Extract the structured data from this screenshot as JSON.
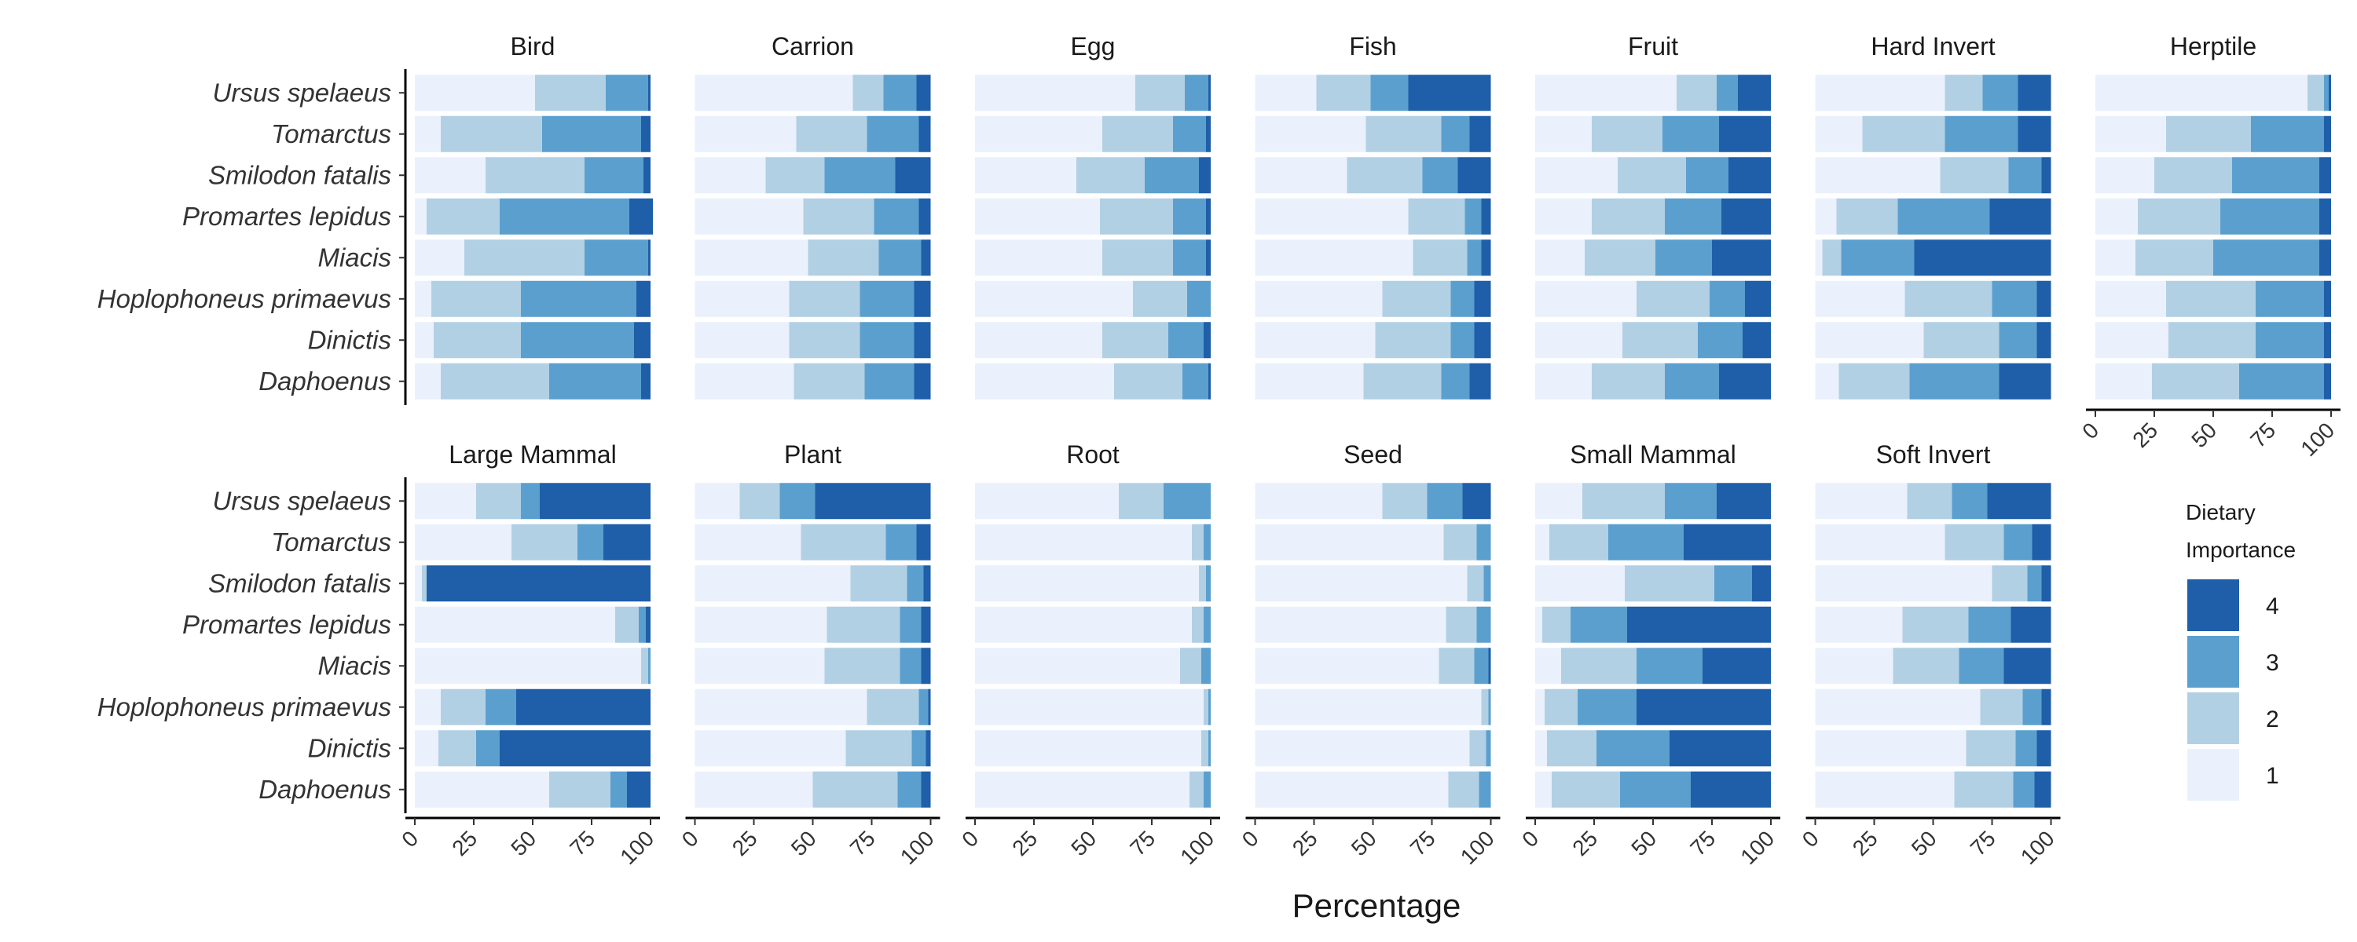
{
  "chart_data": {
    "type": "bar",
    "orientation": "horizontal",
    "stacked": true,
    "xlabel": "Percentage",
    "xlim": [
      0,
      100
    ],
    "xticks": [
      "0",
      "25",
      "50",
      "75",
      "100"
    ],
    "categories": [
      "Ursus spelaeus",
      "Tomarctus",
      "Smilodon fatalis",
      "Promartes lepidus",
      "Miacis",
      "Hoplophoneus primaevus",
      "Dinictis",
      "Daphoenus"
    ],
    "legend": {
      "title_lines": [
        "Dietary",
        "Importance"
      ],
      "position": "right",
      "items": [
        {
          "label": "4",
          "color": "#1f5ea8"
        },
        {
          "label": "3",
          "color": "#5b9fcf"
        },
        {
          "label": "2",
          "color": "#b2d0e4"
        },
        {
          "label": "1",
          "color": "#eaf1fc"
        }
      ]
    },
    "colors": {
      "1": "#eaf1fc",
      "2": "#b2d0e4",
      "3": "#5b9fcf",
      "4": "#1f5ea8"
    },
    "facets": [
      {
        "name": "Bird",
        "values": [
          [
            51,
            30,
            18,
            1
          ],
          [
            11,
            43,
            42,
            4
          ],
          [
            30,
            42,
            25,
            3
          ],
          [
            5,
            31,
            55,
            10
          ],
          [
            21,
            51,
            27,
            1
          ],
          [
            7,
            38,
            49,
            6
          ],
          [
            8,
            37,
            48,
            7
          ],
          [
            11,
            46,
            39,
            4
          ]
        ]
      },
      {
        "name": "Carrion",
        "values": [
          [
            67,
            13,
            14,
            6
          ],
          [
            43,
            30,
            22,
            5
          ],
          [
            30,
            25,
            30,
            15
          ],
          [
            46,
            30,
            19,
            5
          ],
          [
            48,
            30,
            18,
            4
          ],
          [
            40,
            30,
            23,
            7
          ],
          [
            40,
            30,
            23,
            7
          ],
          [
            42,
            30,
            21,
            7
          ]
        ]
      },
      {
        "name": "Egg",
        "values": [
          [
            68,
            21,
            10,
            1
          ],
          [
            54,
            30,
            14,
            2
          ],
          [
            43,
            29,
            23,
            5
          ],
          [
            53,
            31,
            14,
            2
          ],
          [
            54,
            30,
            14,
            2
          ],
          [
            67,
            23,
            10,
            0
          ],
          [
            54,
            28,
            15,
            3
          ],
          [
            59,
            29,
            11,
            1
          ]
        ]
      },
      {
        "name": "Fish",
        "values": [
          [
            26,
            23,
            16,
            35
          ],
          [
            47,
            32,
            12,
            9
          ],
          [
            39,
            32,
            15,
            14
          ],
          [
            65,
            24,
            7,
            4
          ],
          [
            67,
            23,
            6,
            4
          ],
          [
            54,
            29,
            10,
            7
          ],
          [
            51,
            32,
            10,
            7
          ],
          [
            46,
            33,
            12,
            9
          ]
        ]
      },
      {
        "name": "Fruit",
        "values": [
          [
            60,
            17,
            9,
            14
          ],
          [
            24,
            30,
            24,
            22
          ],
          [
            35,
            29,
            18,
            18
          ],
          [
            24,
            31,
            24,
            21
          ],
          [
            21,
            30,
            24,
            25
          ],
          [
            43,
            31,
            15,
            11
          ],
          [
            37,
            32,
            19,
            12
          ],
          [
            24,
            31,
            23,
            22
          ]
        ]
      },
      {
        "name": "Hard Invert",
        "values": [
          [
            55,
            16,
            15,
            14
          ],
          [
            20,
            35,
            31,
            14
          ],
          [
            53,
            29,
            14,
            4
          ],
          [
            9,
            26,
            39,
            26
          ],
          [
            3,
            8,
            31,
            58
          ],
          [
            38,
            37,
            19,
            6
          ],
          [
            46,
            32,
            16,
            6
          ],
          [
            10,
            30,
            38,
            22
          ]
        ]
      },
      {
        "name": "Herptile",
        "values": [
          [
            90,
            7,
            2,
            1
          ],
          [
            30,
            36,
            31,
            3
          ],
          [
            25,
            33,
            37,
            5
          ],
          [
            18,
            35,
            42,
            5
          ],
          [
            17,
            33,
            45,
            5
          ],
          [
            30,
            38,
            29,
            3
          ],
          [
            31,
            37,
            29,
            3
          ],
          [
            24,
            37,
            36,
            3
          ]
        ]
      },
      {
        "name": "Large Mammal",
        "values": [
          [
            26,
            19,
            8,
            47
          ],
          [
            41,
            28,
            11,
            20
          ],
          [
            3,
            2,
            0,
            95
          ],
          [
            85,
            10,
            3,
            2
          ],
          [
            96,
            3,
            1,
            0
          ],
          [
            11,
            19,
            13,
            57
          ],
          [
            10,
            16,
            10,
            64
          ],
          [
            57,
            26,
            7,
            10
          ]
        ]
      },
      {
        "name": "Plant",
        "values": [
          [
            19,
            17,
            15,
            49
          ],
          [
            45,
            36,
            13,
            6
          ],
          [
            66,
            24,
            7,
            3
          ],
          [
            56,
            31,
            9,
            4
          ],
          [
            55,
            32,
            9,
            4
          ],
          [
            73,
            22,
            4,
            1
          ],
          [
            64,
            28,
            6,
            2
          ],
          [
            50,
            36,
            10,
            4
          ]
        ]
      },
      {
        "name": "Root",
        "values": [
          [
            61,
            19,
            20,
            0
          ],
          [
            92,
            5,
            3,
            0
          ],
          [
            95,
            3,
            2,
            0
          ],
          [
            92,
            5,
            3,
            0
          ],
          [
            87,
            9,
            4,
            0
          ],
          [
            97,
            2,
            1,
            0
          ],
          [
            96,
            3,
            1,
            0
          ],
          [
            91,
            6,
            3,
            0
          ]
        ]
      },
      {
        "name": "Seed",
        "values": [
          [
            54,
            19,
            15,
            12
          ],
          [
            80,
            14,
            6,
            0
          ],
          [
            90,
            7,
            3,
            0
          ],
          [
            81,
            13,
            6,
            0
          ],
          [
            78,
            15,
            6,
            1
          ],
          [
            96,
            3,
            1,
            0
          ],
          [
            91,
            7,
            2,
            0
          ],
          [
            82,
            13,
            5,
            0
          ]
        ]
      },
      {
        "name": "Small Mammal",
        "values": [
          [
            20,
            35,
            22,
            23
          ],
          [
            6,
            25,
            32,
            37
          ],
          [
            38,
            38,
            16,
            8
          ],
          [
            3,
            12,
            24,
            61
          ],
          [
            11,
            32,
            28,
            29
          ],
          [
            4,
            14,
            25,
            57
          ],
          [
            5,
            21,
            31,
            43
          ],
          [
            7,
            29,
            30,
            34
          ]
        ]
      },
      {
        "name": "Soft Invert",
        "values": [
          [
            39,
            19,
            15,
            27
          ],
          [
            55,
            25,
            12,
            8
          ],
          [
            75,
            15,
            6,
            4
          ],
          [
            37,
            28,
            18,
            17
          ],
          [
            33,
            28,
            19,
            20
          ],
          [
            70,
            18,
            8,
            4
          ],
          [
            64,
            21,
            9,
            6
          ],
          [
            59,
            25,
            9,
            7
          ]
        ]
      }
    ]
  }
}
